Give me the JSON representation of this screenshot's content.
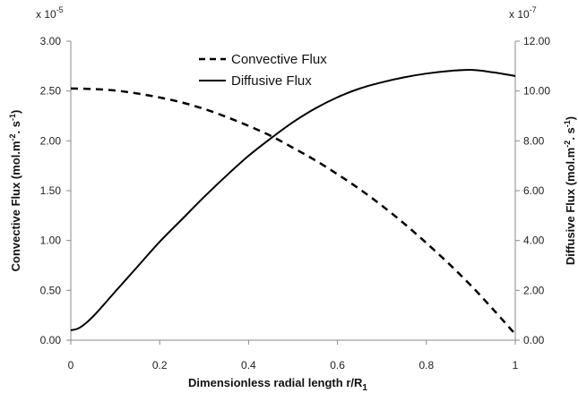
{
  "chart_data": {
    "type": "line",
    "xlabel_main": "Dimensionless radial length r/R",
    "xlabel_sub": "1",
    "ylabel_left": {
      "prefix": "Convective Flux (mol.m",
      "sup1": "-2",
      "mid": ". s",
      "sup2": "-1",
      "suffix": ")"
    },
    "ylabel_right": {
      "prefix": "Diffusive Flux (mol.m",
      "sup1": "-2",
      "mid": ". s",
      "sup2": "-1",
      "suffix": ")"
    },
    "multiplier_left": {
      "base": "x 10",
      "exp": "-5"
    },
    "multiplier_right": {
      "base": "x 10",
      "exp": "-7"
    },
    "x_ticks": [
      "0",
      "0.2",
      "0.4",
      "0.6",
      "0.8",
      "1"
    ],
    "y_left_ticks": [
      "0.00",
      "0.50",
      "1.00",
      "1.50",
      "2.00",
      "2.50",
      "3.00"
    ],
    "y_right_ticks": [
      "0.00",
      "2.00",
      "4.00",
      "6.00",
      "8.00",
      "10.00",
      "12.00"
    ],
    "xlim": [
      0,
      1
    ],
    "ylim_left": [
      0,
      3
    ],
    "ylim_right": [
      0,
      12
    ],
    "legend_position": "top-center",
    "series": [
      {
        "name": "Convective Flux",
        "axis": "left",
        "style": "dashed",
        "x": [
          0,
          0.05,
          0.1,
          0.15,
          0.2,
          0.25,
          0.3,
          0.35,
          0.4,
          0.45,
          0.5,
          0.55,
          0.6,
          0.65,
          0.7,
          0.75,
          0.8,
          0.85,
          0.9,
          0.95,
          1.0
        ],
        "y": [
          2.525,
          2.52,
          2.505,
          2.475,
          2.435,
          2.385,
          2.32,
          2.24,
          2.15,
          2.05,
          1.93,
          1.805,
          1.665,
          1.515,
          1.35,
          1.17,
          0.975,
          0.77,
          0.55,
          0.31,
          0.06
        ]
      },
      {
        "name": "Diffusive Flux",
        "axis": "right",
        "style": "solid",
        "x": [
          0,
          0.02,
          0.05,
          0.1,
          0.15,
          0.2,
          0.25,
          0.3,
          0.35,
          0.4,
          0.45,
          0.5,
          0.55,
          0.6,
          0.65,
          0.7,
          0.75,
          0.8,
          0.85,
          0.9,
          0.95,
          1.0
        ],
        "y": [
          0.4,
          0.5,
          0.95,
          1.95,
          2.95,
          3.95,
          4.85,
          5.75,
          6.6,
          7.4,
          8.1,
          8.75,
          9.3,
          9.75,
          10.1,
          10.35,
          10.55,
          10.7,
          10.8,
          10.85,
          10.75,
          10.6
        ]
      }
    ]
  }
}
